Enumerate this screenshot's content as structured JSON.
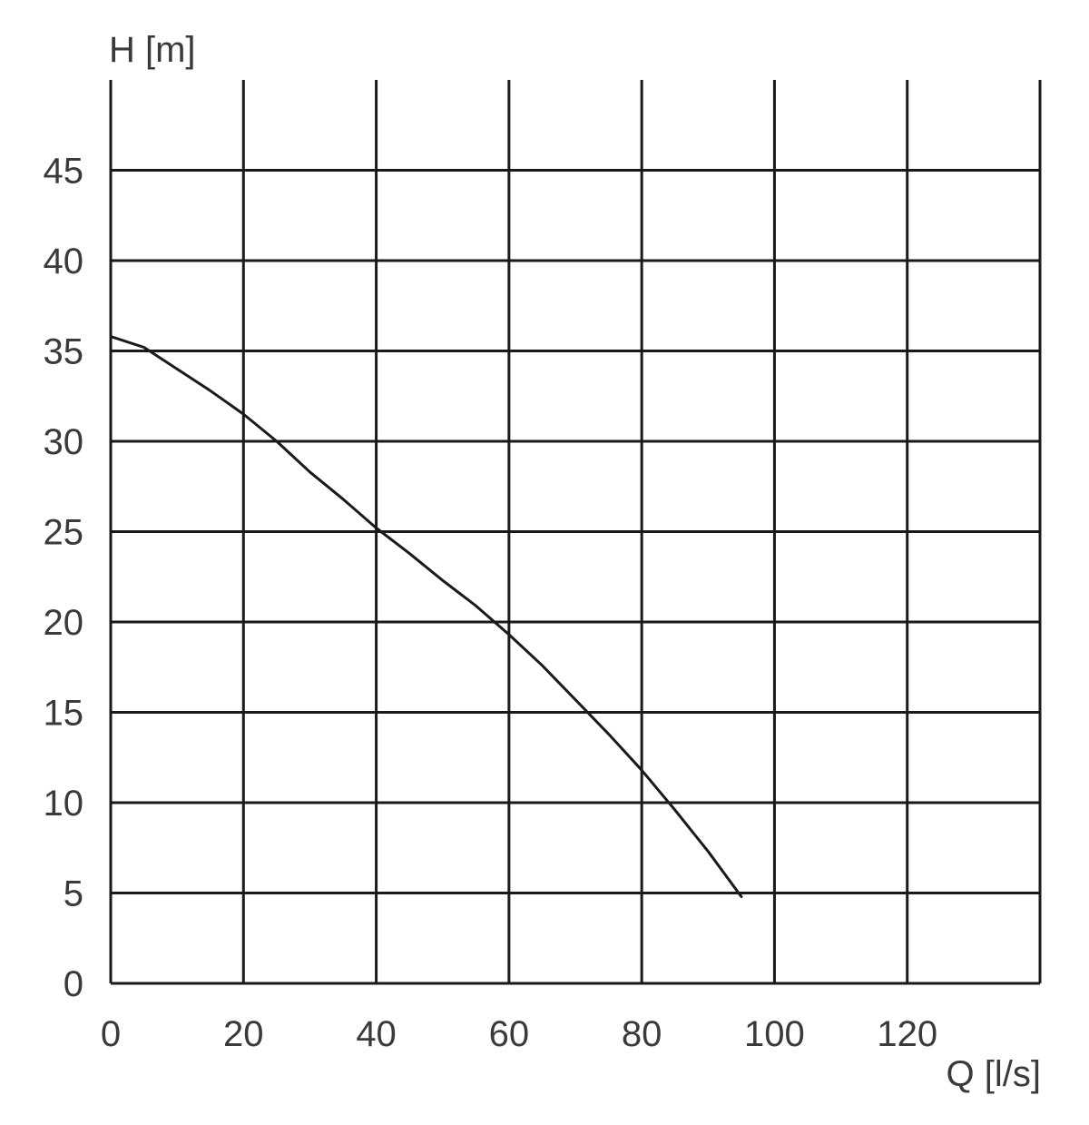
{
  "chart_data": {
    "type": "line",
    "title": "",
    "xlabel": "Q [l/s]",
    "ylabel": "H [m]",
    "xlim": [
      0,
      140
    ],
    "ylim": [
      0,
      50
    ],
    "x_ticks": [
      0,
      20,
      40,
      60,
      80,
      100,
      120
    ],
    "y_ticks": [
      0,
      5,
      10,
      15,
      20,
      25,
      30,
      35,
      40,
      45
    ],
    "x_tick_labels": [
      "0",
      "20",
      "40",
      "60",
      "80",
      "100",
      "120"
    ],
    "y_tick_labels": [
      "0",
      "5",
      "10",
      "15",
      "20",
      "25",
      "30",
      "35",
      "40",
      "45"
    ],
    "x_grid": [
      0,
      20,
      40,
      60,
      80,
      100,
      120,
      140
    ],
    "y_grid": [
      0,
      5,
      10,
      15,
      20,
      25,
      30,
      35,
      40,
      45
    ],
    "grid": true,
    "legend": "none",
    "series": [
      {
        "color": "#1a1a1a",
        "x": [
          0,
          5,
          10,
          15,
          20,
          25,
          30,
          35,
          40,
          45,
          50,
          55,
          60,
          65,
          70,
          75,
          80,
          85,
          90,
          95
        ],
        "y": [
          35.8,
          35.2,
          34.0,
          32.8,
          31.5,
          30.0,
          28.3,
          26.8,
          25.2,
          23.8,
          22.3,
          20.9,
          19.3,
          17.6,
          15.7,
          13.8,
          11.8,
          9.6,
          7.3,
          4.8
        ]
      }
    ]
  }
}
